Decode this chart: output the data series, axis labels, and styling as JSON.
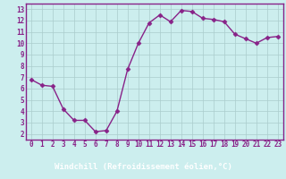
{
  "x": [
    0,
    1,
    2,
    3,
    4,
    5,
    6,
    7,
    8,
    9,
    10,
    11,
    12,
    13,
    14,
    15,
    16,
    17,
    18,
    19,
    20,
    21,
    22,
    23
  ],
  "y": [
    6.8,
    6.3,
    6.2,
    4.2,
    3.2,
    3.2,
    2.2,
    2.3,
    4.0,
    7.7,
    10.0,
    11.8,
    12.5,
    11.9,
    12.9,
    12.8,
    12.2,
    12.1,
    11.9,
    10.8,
    10.4,
    10.0,
    10.5,
    10.6
  ],
  "line_color": "#882288",
  "marker": "D",
  "marker_size": 2.5,
  "bg_color": "#cceeee",
  "grid_color": "#aacccc",
  "xlabel": "Windchill (Refroidissement éolien,°C)",
  "xlabel_bg": "#882288",
  "xlim": [
    -0.5,
    23.5
  ],
  "ylim": [
    1.5,
    13.5
  ],
  "yticks": [
    2,
    3,
    4,
    5,
    6,
    7,
    8,
    9,
    10,
    11,
    12,
    13
  ],
  "xticks": [
    0,
    1,
    2,
    3,
    4,
    5,
    6,
    7,
    8,
    9,
    10,
    11,
    12,
    13,
    14,
    15,
    16,
    17,
    18,
    19,
    20,
    21,
    22,
    23
  ],
  "tick_label_size": 5.5,
  "xlabel_size": 6.5,
  "line_width": 1.0
}
